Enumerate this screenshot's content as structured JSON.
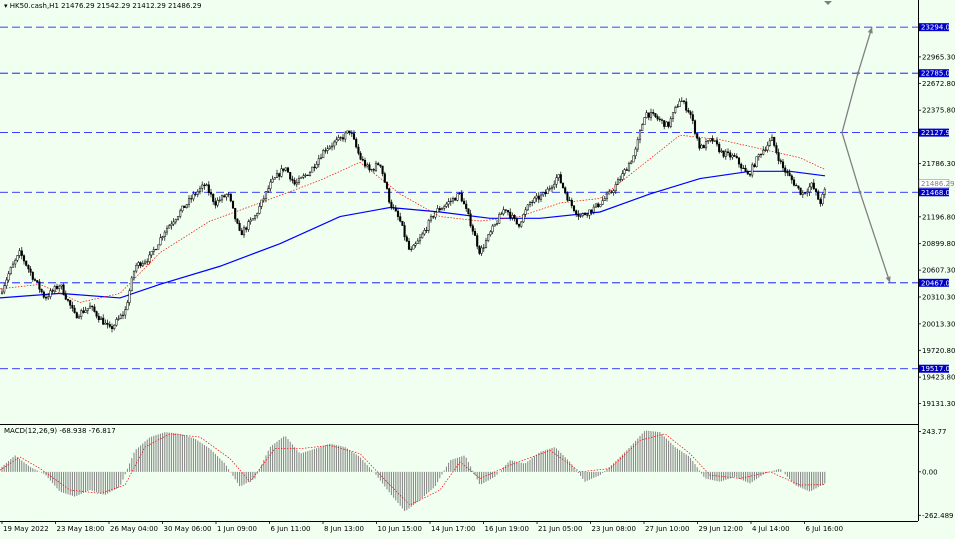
{
  "header": {
    "symbol": "HK50.cash,H1",
    "ohlc": "21476.29 21542.29 21412.29 21486.29"
  },
  "colors": {
    "background": "#f0fff0",
    "candle": "#000000",
    "ma_slow": "#0000ff",
    "ma_fast": "#ff0000",
    "hline": "#0000ff",
    "macd_hist": "#808080",
    "macd_signal": "#ff0000",
    "arrow": "#808080",
    "level_label_bg": "#0000cc"
  },
  "chart_data": {
    "type": "candlestick",
    "price_axis": {
      "ticks": [
        "22965.30",
        "22672.80",
        "22375.80",
        "21786.30",
        "21196.80",
        "20899.80",
        "20607.30",
        "20310.30",
        "20013.30",
        "19720.80",
        "19423.80",
        "19131.30"
      ],
      "range": [
        18950,
        23550
      ]
    },
    "time_axis": {
      "labels": [
        "19 May 2022",
        "23 May 18:00",
        "26 May 04:00",
        "30 May 06:00",
        "1 Jun 09:00",
        "6 Jun 11:00",
        "8 Jun 13:00",
        "10 Jun 15:00",
        "14 Jun 17:00",
        "16 Jun 19:00",
        "21 Jun 05:00",
        "23 Jun 08:00",
        "27 Jun 10:00",
        "29 Jun 12:00",
        "4 Jul 14:00",
        "6 Jul 16:00"
      ]
    },
    "levels": [
      {
        "value": 23294.0,
        "label": "23294.00"
      },
      {
        "value": 22785.0,
        "label": "22785.00"
      },
      {
        "value": 22127.93,
        "label": "22127.93"
      },
      {
        "value": 21468.0,
        "label": "21468.00"
      },
      {
        "value": 20467.0,
        "label": "20467.00"
      },
      {
        "value": 19517.0,
        "label": "19517.00"
      }
    ],
    "current_price": {
      "value": 21486.29,
      "label": "21486.29"
    },
    "close_path": [
      [
        0,
        20350
      ],
      [
        10,
        20600
      ],
      [
        20,
        20800
      ],
      [
        32,
        20550
      ],
      [
        45,
        20300
      ],
      [
        60,
        20450
      ],
      [
        75,
        20100
      ],
      [
        90,
        20200
      ],
      [
        110,
        19950
      ],
      [
        125,
        20150
      ],
      [
        135,
        20650
      ],
      [
        150,
        20750
      ],
      [
        165,
        21050
      ],
      [
        180,
        21250
      ],
      [
        195,
        21450
      ],
      [
        205,
        21550
      ],
      [
        215,
        21350
      ],
      [
        228,
        21450
      ],
      [
        240,
        21000
      ],
      [
        255,
        21200
      ],
      [
        270,
        21550
      ],
      [
        285,
        21750
      ],
      [
        295,
        21550
      ],
      [
        310,
        21700
      ],
      [
        325,
        21950
      ],
      [
        340,
        22050
      ],
      [
        350,
        22150
      ],
      [
        360,
        21850
      ],
      [
        370,
        21700
      ],
      [
        380,
        21800
      ],
      [
        390,
        21350
      ],
      [
        400,
        21150
      ],
      [
        410,
        20800
      ],
      [
        420,
        20950
      ],
      [
        435,
        21250
      ],
      [
        448,
        21350
      ],
      [
        460,
        21450
      ],
      [
        470,
        21150
      ],
      [
        480,
        20800
      ],
      [
        492,
        21050
      ],
      [
        505,
        21300
      ],
      [
        518,
        21100
      ],
      [
        530,
        21350
      ],
      [
        545,
        21450
      ],
      [
        558,
        21650
      ],
      [
        570,
        21350
      ],
      [
        580,
        21200
      ],
      [
        595,
        21300
      ],
      [
        610,
        21450
      ],
      [
        622,
        21650
      ],
      [
        635,
        21900
      ],
      [
        645,
        22350
      ],
      [
        655,
        22300
      ],
      [
        668,
        22200
      ],
      [
        680,
        22500
      ],
      [
        690,
        22350
      ],
      [
        700,
        21950
      ],
      [
        712,
        22050
      ],
      [
        722,
        21900
      ],
      [
        735,
        21850
      ],
      [
        748,
        21650
      ],
      [
        760,
        21900
      ],
      [
        772,
        22050
      ],
      [
        782,
        21750
      ],
      [
        792,
        21600
      ],
      [
        802,
        21450
      ],
      [
        812,
        21550
      ],
      [
        820,
        21350
      ],
      [
        825,
        21486
      ]
    ],
    "ma_slow_path": [
      [
        0,
        20300
      ],
      [
        60,
        20350
      ],
      [
        120,
        20300
      ],
      [
        160,
        20450
      ],
      [
        220,
        20650
      ],
      [
        280,
        20900
      ],
      [
        340,
        21200
      ],
      [
        390,
        21300
      ],
      [
        440,
        21250
      ],
      [
        490,
        21180
      ],
      [
        540,
        21180
      ],
      [
        600,
        21250
      ],
      [
        650,
        21450
      ],
      [
        700,
        21620
      ],
      [
        750,
        21700
      ],
      [
        790,
        21700
      ],
      [
        825,
        21650
      ]
    ],
    "ma_fast_path": [
      [
        0,
        20400
      ],
      [
        40,
        20450
      ],
      [
        80,
        20250
      ],
      [
        120,
        20350
      ],
      [
        160,
        20800
      ],
      [
        210,
        21150
      ],
      [
        260,
        21350
      ],
      [
        320,
        21600
      ],
      [
        360,
        21800
      ],
      [
        400,
        21450
      ],
      [
        440,
        21200
      ],
      [
        480,
        21150
      ],
      [
        520,
        21200
      ],
      [
        560,
        21350
      ],
      [
        600,
        21400
      ],
      [
        640,
        21750
      ],
      [
        680,
        22100
      ],
      [
        720,
        22050
      ],
      [
        760,
        21950
      ],
      [
        800,
        21850
      ],
      [
        825,
        21720
      ]
    ],
    "projection_arrows": [
      {
        "from": [
          842,
          22127.93
        ],
        "via": [
          858,
          22785.0
        ],
        "to": [
          872,
          23294.0
        ]
      },
      {
        "from": [
          842,
          22127.93
        ],
        "via": [
          860,
          21468.0
        ],
        "to": [
          890,
          20467.0
        ]
      }
    ],
    "macd": {
      "label": "MACD(12,26,9) -68.938 -76.817",
      "ticks": [
        "243.77",
        "0.00",
        "-262.489"
      ],
      "range": [
        -285,
        265
      ],
      "hist_path": [
        [
          0,
          20
        ],
        [
          15,
          100
        ],
        [
          30,
          30
        ],
        [
          45,
          -15
        ],
        [
          60,
          -120
        ],
        [
          75,
          -150
        ],
        [
          90,
          -110
        ],
        [
          105,
          -140
        ],
        [
          120,
          -90
        ],
        [
          135,
          130
        ],
        [
          150,
          210
        ],
        [
          165,
          240
        ],
        [
          180,
          230
        ],
        [
          195,
          200
        ],
        [
          210,
          140
        ],
        [
          225,
          50
        ],
        [
          240,
          -90
        ],
        [
          255,
          -40
        ],
        [
          270,
          150
        ],
        [
          285,
          220
        ],
        [
          300,
          110
        ],
        [
          315,
          140
        ],
        [
          330,
          170
        ],
        [
          345,
          150
        ],
        [
          360,
          90
        ],
        [
          375,
          -10
        ],
        [
          390,
          -130
        ],
        [
          405,
          -240
        ],
        [
          420,
          -170
        ],
        [
          435,
          -90
        ],
        [
          450,
          70
        ],
        [
          465,
          100
        ],
        [
          480,
          -80
        ],
        [
          495,
          -30
        ],
        [
          510,
          70
        ],
        [
          525,
          50
        ],
        [
          540,
          120
        ],
        [
          555,
          150
        ],
        [
          570,
          60
        ],
        [
          585,
          -60
        ],
        [
          600,
          -20
        ],
        [
          615,
          60
        ],
        [
          630,
          150
        ],
        [
          645,
          250
        ],
        [
          660,
          240
        ],
        [
          675,
          150
        ],
        [
          690,
          90
        ],
        [
          705,
          -40
        ],
        [
          720,
          -60
        ],
        [
          735,
          -30
        ],
        [
          750,
          -70
        ],
        [
          765,
          -10
        ],
        [
          780,
          20
        ],
        [
          795,
          -80
        ],
        [
          810,
          -120
        ],
        [
          825,
          -70
        ]
      ],
      "signal_path": [
        [
          0,
          10
        ],
        [
          20,
          90
        ],
        [
          40,
          20
        ],
        [
          70,
          -110
        ],
        [
          100,
          -130
        ],
        [
          125,
          -80
        ],
        [
          145,
          150
        ],
        [
          170,
          230
        ],
        [
          200,
          210
        ],
        [
          230,
          80
        ],
        [
          250,
          -60
        ],
        [
          275,
          140
        ],
        [
          300,
          140
        ],
        [
          330,
          160
        ],
        [
          360,
          110
        ],
        [
          390,
          -80
        ],
        [
          410,
          -200
        ],
        [
          440,
          -110
        ],
        [
          460,
          60
        ],
        [
          480,
          -40
        ],
        [
          510,
          40
        ],
        [
          550,
          130
        ],
        [
          580,
          0
        ],
        [
          610,
          20
        ],
        [
          640,
          190
        ],
        [
          665,
          230
        ],
        [
          690,
          110
        ],
        [
          710,
          -20
        ],
        [
          740,
          -40
        ],
        [
          770,
          0
        ],
        [
          800,
          -80
        ],
        [
          825,
          -77
        ]
      ]
    }
  }
}
